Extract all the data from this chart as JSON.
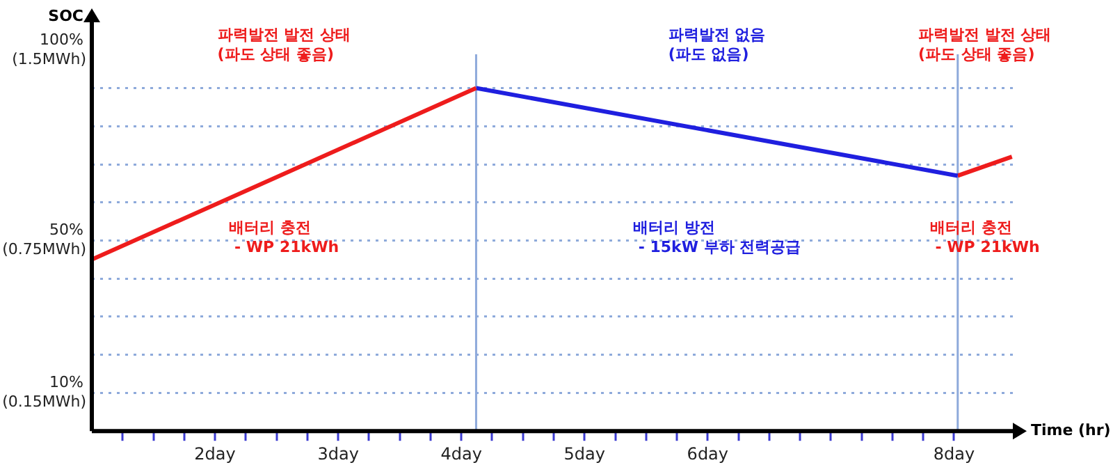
{
  "chart_data": {
    "type": "line",
    "xlabel": "Time (hr)",
    "ylabel": "SOC",
    "xlim": [
      1,
      8.5
    ],
    "ylim": [
      0,
      108
    ],
    "y2lim": [
      0,
      1.62
    ],
    "xticks": [
      {
        "value": 1.25,
        "label": null
      },
      {
        "value": 1.5,
        "label": null
      },
      {
        "value": 1.75,
        "label": null
      },
      {
        "value": 2,
        "label": "2day"
      },
      {
        "value": 2.25,
        "label": null
      },
      {
        "value": 2.5,
        "label": null
      },
      {
        "value": 2.75,
        "label": null
      },
      {
        "value": 3,
        "label": "3day"
      },
      {
        "value": 3.25,
        "label": null
      },
      {
        "value": 3.5,
        "label": null
      },
      {
        "value": 3.75,
        "label": null
      },
      {
        "value": 4,
        "label": "4day"
      },
      {
        "value": 4.25,
        "label": null
      },
      {
        "value": 4.5,
        "label": null
      },
      {
        "value": 4.75,
        "label": null
      },
      {
        "value": 5,
        "label": "5day"
      },
      {
        "value": 5.25,
        "label": null
      },
      {
        "value": 5.5,
        "label": null
      },
      {
        "value": 5.75,
        "label": null
      },
      {
        "value": 6,
        "label": "6day"
      },
      {
        "value": 6.25,
        "label": null
      },
      {
        "value": 6.5,
        "label": null
      },
      {
        "value": 6.75,
        "label": null
      },
      {
        "value": 7,
        "label": null
      },
      {
        "value": 7.25,
        "label": null
      },
      {
        "value": 7.5,
        "label": null
      },
      {
        "value": 7.75,
        "label": null
      },
      {
        "value": 8,
        "label": "8day"
      }
    ],
    "yticks": [
      {
        "value": 10,
        "label": "10%"
      },
      {
        "value": 20,
        "label": null
      },
      {
        "value": 30,
        "label": null
      },
      {
        "value": 40,
        "label": null
      },
      {
        "value": 50,
        "label": "50%"
      },
      {
        "value": 60,
        "label": null
      },
      {
        "value": 70,
        "label": null
      },
      {
        "value": 80,
        "label": null
      },
      {
        "value": 90,
        "label": null
      },
      {
        "value": 100,
        "label": "100%"
      }
    ],
    "y2ticks": [
      {
        "value": 0.15,
        "label": "(0.15MWh)"
      },
      {
        "value": 0.75,
        "label": "(0.75MWh)"
      },
      {
        "value": 1.5,
        "label": "(1.5MWh)"
      }
    ],
    "series": [
      {
        "color": "#ee1c1c",
        "x": [
          1,
          4.12
        ],
        "values": [
          45,
          90
        ]
      },
      {
        "color": "#1f1fdf",
        "x": [
          4.12,
          8.03
        ],
        "values": [
          90,
          67
        ]
      },
      {
        "color": "#ee1c1c",
        "x": [
          8.03,
          8.47
        ],
        "values": [
          67,
          72
        ]
      }
    ],
    "ref_lines": [
      {
        "axis": "x",
        "value": 4.12,
        "color": "#8eaadb"
      },
      {
        "axis": "x",
        "value": 8.03,
        "color": "#8eaadb"
      }
    ],
    "annotations": [
      "파력발전 발전 상태\n(파도 상태 좋음)",
      "파력발전 없음\n(파도 없음)",
      "파력발전 발전 상태\n(파도 상태 좋음)",
      "배터리 충전\n - WP 21kWh",
      "배터리 방전\n - 15kW 부하 전력공급",
      "배터리 충전\n - WP 21kWh"
    ],
    "grid": "y",
    "marker": "none",
    "line_style": "solid"
  }
}
